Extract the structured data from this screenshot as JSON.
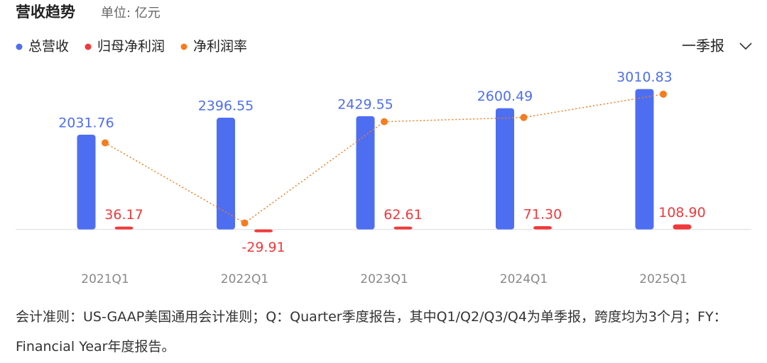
{
  "chart_data": {
    "type": "bar",
    "title": "营收趋势",
    "subtitle": "单位: 亿元",
    "categories": [
      "2021Q1",
      "2022Q1",
      "2023Q1",
      "2024Q1",
      "2025Q1"
    ],
    "series": [
      {
        "name": "总营收",
        "color": "#4e6ef2",
        "values": [
          2031.76,
          2396.55,
          2429.55,
          2600.49,
          3010.83
        ]
      },
      {
        "name": "归母净利润",
        "color": "#f0393b",
        "values": [
          36.17,
          -29.91,
          62.61,
          71.3,
          108.9
        ],
        "value_labels": [
          "36.17",
          "-29.91",
          "62.61",
          "71.30",
          "108.90"
        ]
      },
      {
        "name": "净利润率",
        "color": "#f57c1f",
        "type": "line",
        "axis": "y2",
        "values": [
          1.78,
          -1.25,
          2.58,
          2.74,
          3.62
        ]
      }
    ],
    "ylim": [
      -400,
      3400
    ],
    "y2lim": [
      -2.2,
      4.5
    ],
    "legend": "top-left",
    "note": "会计准则：US-GAAP美国通用会计准则；Q：Quarter季度报告，其中Q1/Q2/Q3/Q4为单季报，跨度均为3个月；FY：Financial Year年度报告。"
  },
  "period_selector": "一季报"
}
